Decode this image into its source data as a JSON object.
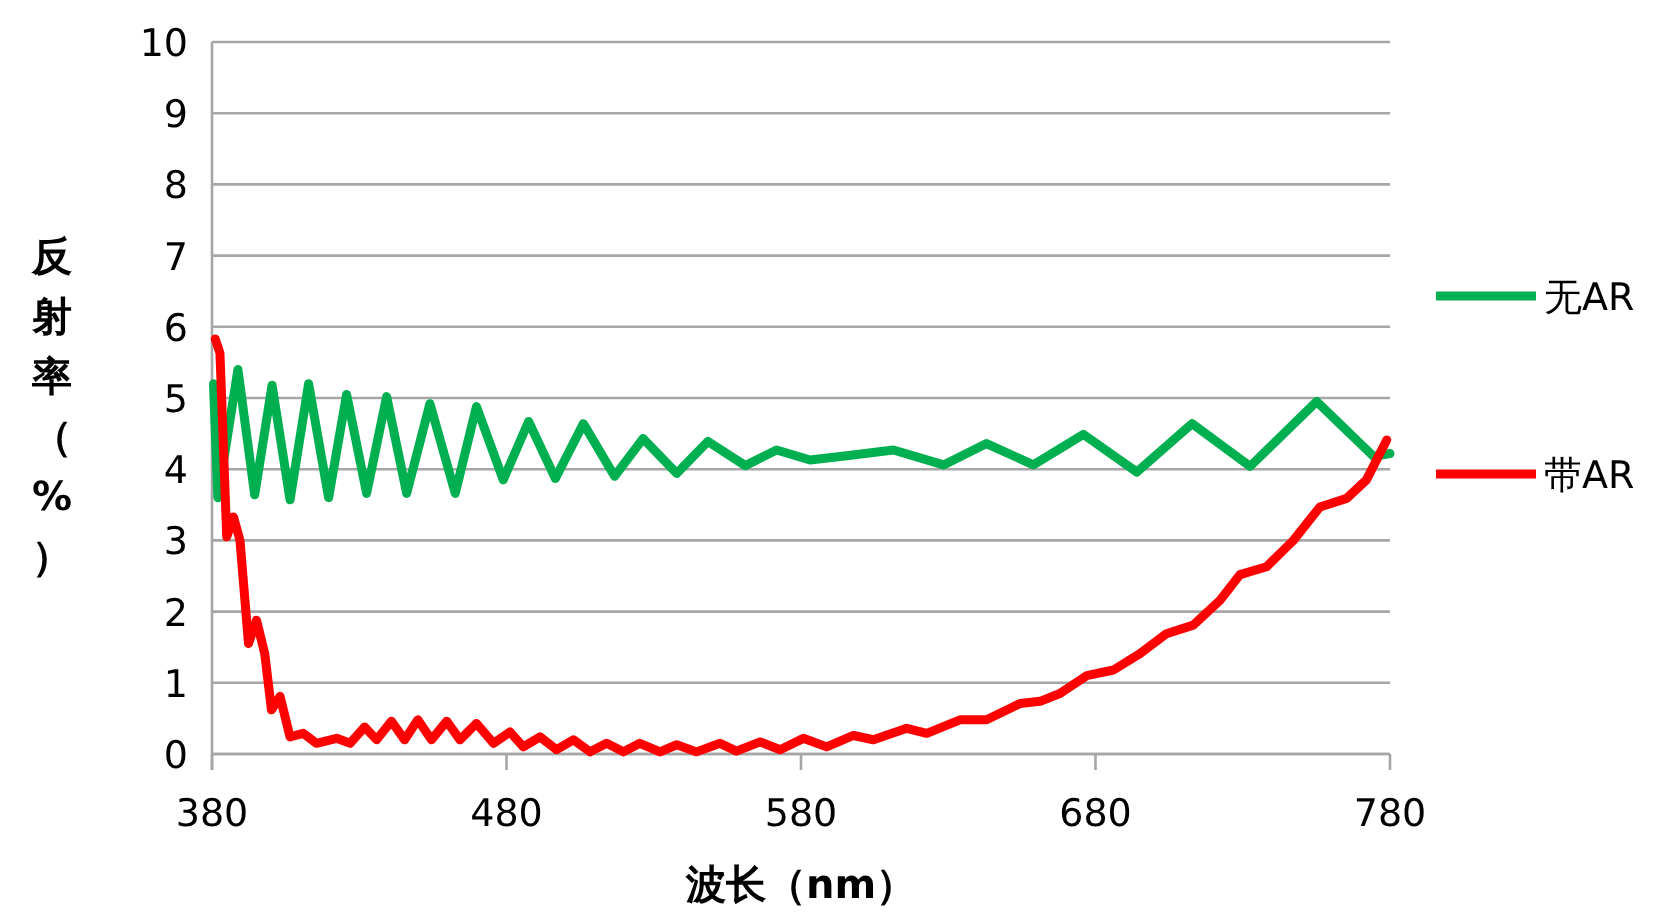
{
  "chart_data": {
    "type": "line",
    "xlabel": "波长（nm）",
    "ylabel": "反射率（%）",
    "xlim": [
      380,
      780
    ],
    "ylim": [
      0,
      10
    ],
    "xticks": [
      380,
      480,
      580,
      680,
      780
    ],
    "yticks": [
      0,
      1,
      2,
      3,
      4,
      5,
      6,
      7,
      8,
      9,
      10
    ],
    "grid": "y",
    "legend": "right",
    "line_style": "solid",
    "marker": "none",
    "series": [
      {
        "name": "无AR",
        "color": "#00b050",
        "x": [
          380.5,
          382,
          388.8,
          394.5,
          400.4,
          406.5,
          412.8,
          419.6,
          425.7,
          432.5,
          439.3,
          446.1,
          454,
          462.6,
          469.8,
          478.9,
          487.5,
          496.6,
          506.1,
          516.7,
          526.4,
          537.8,
          548.4,
          561.1,
          571.7,
          583.1,
          595.5,
          611.4,
          628.4,
          643,
          658.9,
          675.9,
          694,
          712.8,
          732.5,
          755.1,
          774.4,
          780
        ],
        "values": [
          5.2,
          3.6,
          5.4,
          3.64,
          5.18,
          3.57,
          5.2,
          3.6,
          5.05,
          3.66,
          5.02,
          3.66,
          4.92,
          3.66,
          4.88,
          3.85,
          4.67,
          3.87,
          4.64,
          3.9,
          4.43,
          3.94,
          4.39,
          4.05,
          4.27,
          4.13,
          4.19,
          4.27,
          4.06,
          4.36,
          4.06,
          4.49,
          3.96,
          4.64,
          4.04,
          4.95,
          4.18,
          4.22
        ]
      },
      {
        "name": "带AR",
        "color": "#ff0000",
        "x": [
          381.1,
          382.7,
          385,
          387.3,
          389.5,
          392.4,
          395.1,
          397.9,
          400.2,
          403.1,
          406.5,
          411,
          415.5,
          422.3,
          426.9,
          431.8,
          435.9,
          440.9,
          445.4,
          449.9,
          454.5,
          459.7,
          464.2,
          469.8,
          475.6,
          481.2,
          485.7,
          491.4,
          497,
          502.7,
          508.4,
          514,
          519.7,
          525.3,
          532.1,
          537.8,
          544.5,
          552.5,
          558.1,
          566.1,
          572.9,
          580.8,
          588.7,
          597.8,
          604.6,
          615.9,
          622.7,
          634,
          643,
          654.4,
          661.2,
          667.9,
          677,
          686.1,
          695.1,
          704.1,
          713.2,
          722.3,
          729.1,
          738.1,
          747.2,
          756.2,
          765.3,
          772,
          778.9
        ],
        "values": [
          5.83,
          5.63,
          3.05,
          3.33,
          3.0,
          1.55,
          1.88,
          1.41,
          0.62,
          0.81,
          0.24,
          0.29,
          0.15,
          0.22,
          0.15,
          0.38,
          0.2,
          0.46,
          0.2,
          0.48,
          0.2,
          0.46,
          0.2,
          0.43,
          0.15,
          0.31,
          0.1,
          0.24,
          0.06,
          0.2,
          0.03,
          0.15,
          0.03,
          0.15,
          0.03,
          0.13,
          0.03,
          0.15,
          0.04,
          0.17,
          0.06,
          0.22,
          0.1,
          0.26,
          0.2,
          0.36,
          0.29,
          0.48,
          0.48,
          0.71,
          0.74,
          0.85,
          1.1,
          1.18,
          1.41,
          1.69,
          1.81,
          2.16,
          2.52,
          2.63,
          3.0,
          3.47,
          3.59,
          3.85,
          4.41
        ]
      }
    ]
  }
}
